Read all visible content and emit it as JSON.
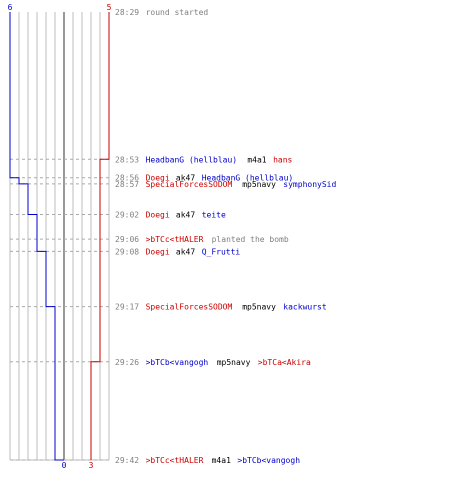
{
  "chart_data": {
    "type": "line",
    "title": "",
    "series": [
      {
        "team": "blue",
        "color": "#0000cc",
        "start_count": 6,
        "end_count": 0,
        "start_label": "6",
        "end_label": "0",
        "steps": [
          {
            "time": "28:56",
            "count": 5
          },
          {
            "time": "28:57",
            "count": 4
          },
          {
            "time": "29:02",
            "count": 3
          },
          {
            "time": "29:08",
            "count": 2
          },
          {
            "time": "29:17",
            "count": 1
          },
          {
            "time": "29:42",
            "count": 0
          }
        ]
      },
      {
        "team": "red",
        "color": "#cc0000",
        "start_count": 5,
        "end_count": 3,
        "start_label": "5",
        "end_label": "3",
        "steps": [
          {
            "time": "28:53",
            "count": 4
          },
          {
            "time": "29:26",
            "count": 3
          }
        ]
      }
    ],
    "events": [
      {
        "time": "28:29",
        "parts": [
          {
            "text": "round started",
            "color": "#808080"
          }
        ]
      },
      {
        "time": "28:53",
        "parts": [
          {
            "text": "HeadbanG (hellblau)",
            "color": "#0000cc"
          },
          {
            "text": " m4a1 ",
            "color": "#000000"
          },
          {
            "text": "hans",
            "color": "#cc0000"
          }
        ]
      },
      {
        "time": "28:56",
        "parts": [
          {
            "text": "Doegi",
            "color": "#cc0000"
          },
          {
            "text": " ak47 ",
            "color": "#000000"
          },
          {
            "text": "HeadbanG (hellblau)",
            "color": "#0000cc"
          }
        ]
      },
      {
        "time": "28:57",
        "parts": [
          {
            "text": "SpecialForcesSODOM",
            "color": "#cc0000"
          },
          {
            "text": " mp5navy ",
            "color": "#000000"
          },
          {
            "text": "symphonySid",
            "color": "#0000cc"
          }
        ]
      },
      {
        "time": "29:02",
        "parts": [
          {
            "text": "Doegi",
            "color": "#cc0000"
          },
          {
            "text": " ak47 ",
            "color": "#000000"
          },
          {
            "text": "teite",
            "color": "#0000cc"
          }
        ]
      },
      {
        "time": "29:06",
        "parts": [
          {
            "text": ">bTCc<tHALER",
            "color": "#cc0000"
          },
          {
            "text": " planted the bomb",
            "color": "#808080"
          }
        ]
      },
      {
        "time": "29:08",
        "parts": [
          {
            "text": "Doegi",
            "color": "#cc0000"
          },
          {
            "text": " ak47 ",
            "color": "#000000"
          },
          {
            "text": "Q_Frutti",
            "color": "#0000cc"
          }
        ]
      },
      {
        "time": "29:17",
        "parts": [
          {
            "text": "SpecialForcesSODOM",
            "color": "#cc0000"
          },
          {
            "text": " mp5navy ",
            "color": "#000000"
          },
          {
            "text": "kackwurst",
            "color": "#0000cc"
          }
        ]
      },
      {
        "time": "29:26",
        "parts": [
          {
            "text": ">bTCb<vangogh",
            "color": "#0000cc"
          },
          {
            "text": " mp5navy ",
            "color": "#000000"
          },
          {
            "text": ">bTCa<Akira",
            "color": "#cc0000"
          }
        ]
      },
      {
        "time": "29:42",
        "parts": [
          {
            "text": ">bTCc<tHALER",
            "color": "#cc0000"
          },
          {
            "text": " m4a1 ",
            "color": "#000000"
          },
          {
            "text": ">bTCb<vangogh",
            "color": "#0000cc"
          }
        ]
      }
    ],
    "time_range": [
      "28:29",
      "29:42"
    ],
    "count_range": [
      0,
      10
    ],
    "grid": true
  }
}
